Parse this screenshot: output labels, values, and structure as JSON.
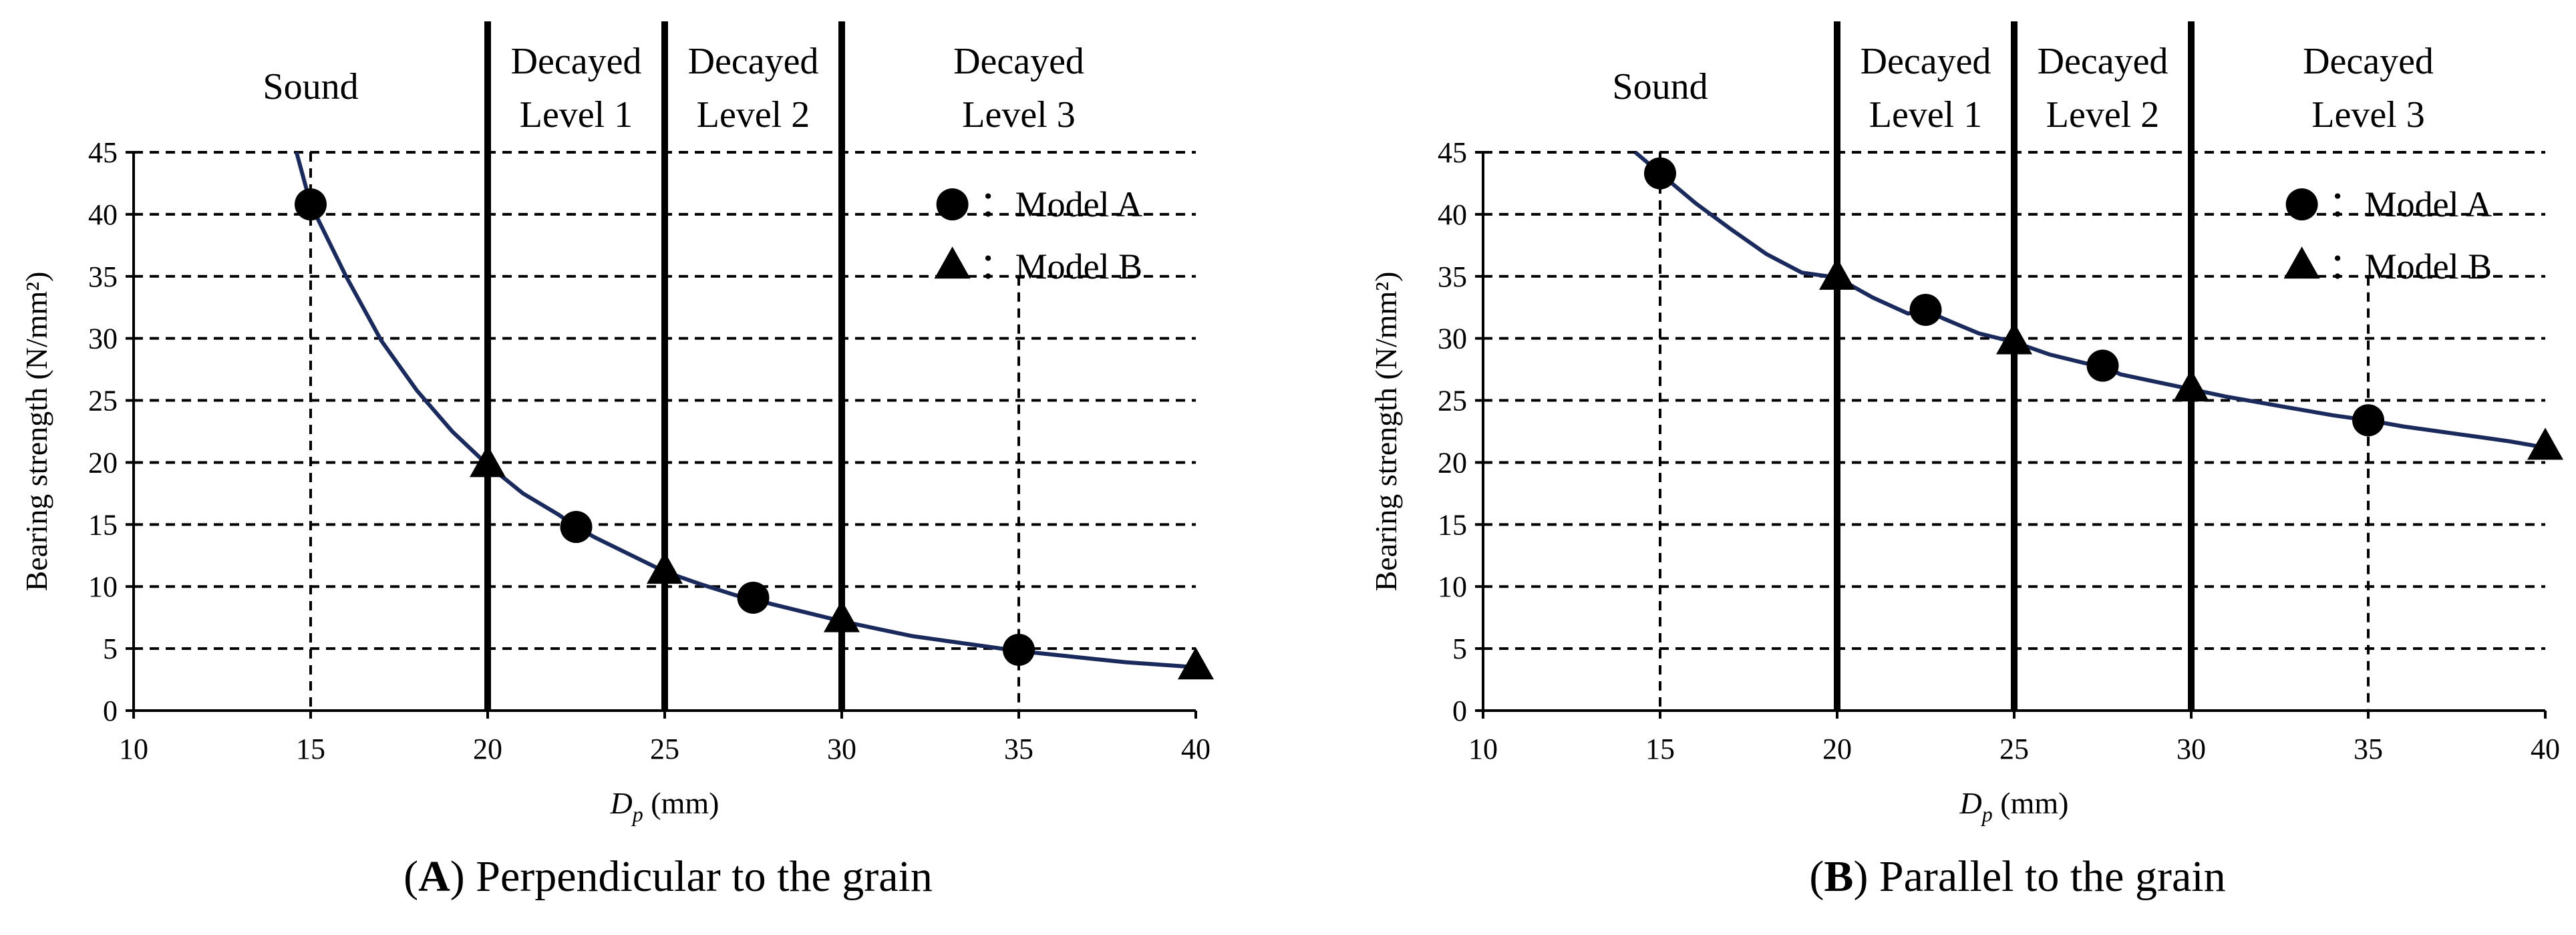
{
  "chart_data": [
    {
      "type": "scatter",
      "panel_letter": "A",
      "caption": ") Perpendicular to the grain",
      "xlabel_symbol": "D",
      "xlabel_sub": "p",
      "xlabel_unit": " (mm)",
      "ylabel": "Bearing strength (N/mm²)",
      "xlim": [
        10,
        40
      ],
      "ylim": [
        0,
        45
      ],
      "xticks": [
        10,
        15,
        20,
        25,
        30,
        35,
        40
      ],
      "yticks": [
        0,
        5,
        10,
        15,
        20,
        25,
        30,
        35,
        40,
        45
      ],
      "grid": true,
      "level_boundaries": [
        20,
        25,
        30
      ],
      "zones": [
        {
          "lines": [
            "Sound"
          ],
          "x_center": 15
        },
        {
          "lines": [
            "Decayed",
            "Level 1"
          ],
          "x_center": 22.5
        },
        {
          "lines": [
            "Decayed",
            "Level 2"
          ],
          "x_center": 27.5
        },
        {
          "lines": [
            "Decayed",
            "Level 3"
          ],
          "x_center": 35
        }
      ],
      "fit_curve": {
        "x": [
          14.6,
          15,
          16,
          17,
          18,
          19,
          20,
          21,
          22,
          22.5,
          23,
          24,
          25,
          26,
          27,
          27.5,
          28,
          29,
          30,
          31,
          32,
          33,
          34,
          35,
          36,
          37,
          38,
          39,
          40
        ],
        "y": [
          45,
          40.8,
          35,
          29.8,
          25.8,
          22.5,
          19.8,
          17.5,
          15.8,
          14.8,
          14,
          12.6,
          11.2,
          10.2,
          9.3,
          9,
          8.6,
          7.9,
          7.2,
          6.6,
          6,
          5.6,
          5.2,
          4.8,
          4.5,
          4.2,
          3.9,
          3.7,
          3.5
        ]
      },
      "series": [
        {
          "name": "Model A",
          "marker": "circle",
          "x": [
            15,
            22.5,
            27.5,
            35
          ],
          "y": [
            40.8,
            14.8,
            9.1,
            4.9
          ]
        },
        {
          "name": "Model B",
          "marker": "triangle",
          "x": [
            20,
            25,
            30,
            40
          ],
          "y": [
            19.8,
            11.2,
            7.3,
            3.5
          ]
        }
      ],
      "legend": [
        {
          "marker": "circle",
          "label": "：Model A"
        },
        {
          "marker": "triangle",
          "label": "：Model B"
        }
      ]
    },
    {
      "type": "scatter",
      "panel_letter": "B",
      "caption": ") Parallel to the grain",
      "xlabel_symbol": "D",
      "xlabel_sub": "p",
      "xlabel_unit": " (mm)",
      "ylabel": "Bearing strength (N/mm²)",
      "xlim": [
        10,
        40
      ],
      "ylim": [
        0,
        45
      ],
      "xticks": [
        10,
        15,
        20,
        25,
        30,
        35,
        40
      ],
      "yticks": [
        0,
        5,
        10,
        15,
        20,
        25,
        30,
        35,
        40,
        45
      ],
      "grid": true,
      "level_boundaries": [
        20,
        25,
        30
      ],
      "zones": [
        {
          "lines": [
            "Sound"
          ],
          "x_center": 15
        },
        {
          "lines": [
            "Decayed",
            "Level 1"
          ],
          "x_center": 22.5
        },
        {
          "lines": [
            "Decayed",
            "Level 2"
          ],
          "x_center": 27.5
        },
        {
          "lines": [
            "Decayed",
            "Level 3"
          ],
          "x_center": 35
        }
      ],
      "fit_curve": {
        "x": [
          14.3,
          15,
          16,
          17,
          18,
          19,
          20,
          21,
          22,
          22.5,
          23,
          24,
          25,
          26,
          27,
          27.5,
          28,
          29,
          30,
          31,
          32,
          33,
          34,
          35,
          36,
          37,
          38,
          39,
          40
        ],
        "y": [
          45,
          43.3,
          40.9,
          38.8,
          36.8,
          35.3,
          34.9,
          33.3,
          32,
          32.3,
          31.6,
          30.4,
          29.7,
          28.7,
          28,
          27.8,
          27.1,
          26.5,
          25.9,
          25.3,
          24.8,
          24.3,
          23.8,
          23.4,
          22.9,
          22.5,
          22.1,
          21.7,
          21.2
        ]
      },
      "series": [
        {
          "name": "Model A",
          "marker": "circle",
          "x": [
            15,
            22.5,
            27.5,
            35
          ],
          "y": [
            43.3,
            32.3,
            27.8,
            23.4
          ]
        },
        {
          "name": "Model B",
          "marker": "triangle",
          "x": [
            20,
            25,
            30,
            40
          ],
          "y": [
            34.9,
            29.7,
            25.9,
            21.2
          ]
        }
      ],
      "legend": [
        {
          "marker": "circle",
          "label": "：Model A"
        },
        {
          "marker": "triangle",
          "label": "：Model B"
        }
      ]
    }
  ]
}
